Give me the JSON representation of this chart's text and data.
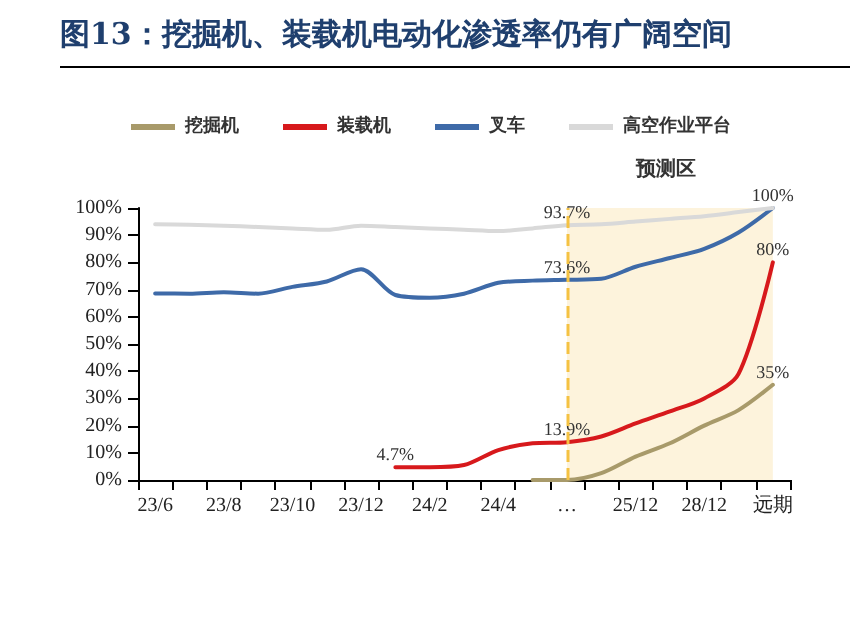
{
  "chart_data": {
    "type": "line",
    "title": "图13：挖掘机、装载机电动化渗透率仍有广阔空间",
    "categories": [
      "23/6",
      null,
      "23/8",
      null,
      "23/10",
      null,
      "23/12",
      null,
      "24/2",
      null,
      "24/4",
      null,
      "…",
      null,
      "25/12",
      null,
      "28/12",
      null,
      "远期"
    ],
    "series": [
      {
        "name": "挖掘机",
        "color": "#a89a6a",
        "values": [
          null,
          null,
          null,
          null,
          null,
          null,
          null,
          null,
          null,
          null,
          null,
          0,
          0,
          2.5,
          8.6,
          13.5,
          20,
          25.7,
          35
        ],
        "value_labels": [
          null,
          null,
          null,
          null,
          null,
          null,
          null,
          null,
          null,
          null,
          null,
          null,
          null,
          null,
          null,
          null,
          null,
          null,
          "35%"
        ]
      },
      {
        "name": "装载机",
        "color": "#d7191c",
        "values": [
          null,
          null,
          null,
          null,
          null,
          null,
          null,
          4.7,
          4.7,
          5.5,
          11,
          13.5,
          13.9,
          16,
          20.8,
          25.2,
          30,
          39,
          80
        ],
        "value_labels": [
          null,
          null,
          null,
          null,
          null,
          null,
          null,
          "4.7%",
          null,
          null,
          null,
          null,
          "13.9%",
          null,
          null,
          null,
          null,
          null,
          "80%"
        ]
      },
      {
        "name": "叉车",
        "color": "#3e6aa8",
        "values": [
          68.6,
          68.5,
          69,
          68.5,
          71,
          73,
          77.5,
          68,
          67,
          68.5,
          72.5,
          73.3,
          73.6,
          74,
          78.4,
          81.6,
          85,
          91,
          100
        ],
        "value_labels": [
          null,
          null,
          null,
          null,
          null,
          null,
          null,
          null,
          null,
          null,
          null,
          null,
          "73.6%",
          null,
          null,
          null,
          null,
          null,
          null
        ]
      },
      {
        "name": "高空作业平台",
        "color": "#d9d9d9",
        "values": [
          94,
          93.8,
          93.5,
          93,
          92.5,
          92,
          93.5,
          93,
          92.5,
          92,
          91.5,
          92.5,
          93.7,
          94,
          95,
          96,
          97,
          98.5,
          100
        ],
        "value_labels": [
          null,
          null,
          null,
          null,
          null,
          null,
          null,
          null,
          null,
          null,
          null,
          null,
          "93.7%",
          null,
          null,
          null,
          null,
          null,
          "100%"
        ]
      }
    ],
    "ylim": [
      0,
      100
    ],
    "yticks": [
      {
        "value": 0,
        "label": "0%"
      },
      {
        "value": 10,
        "label": "10%"
      },
      {
        "value": 20,
        "label": "20%"
      },
      {
        "value": 30,
        "label": "30%"
      },
      {
        "value": 40,
        "label": "40%"
      },
      {
        "value": 50,
        "label": "50%"
      },
      {
        "value": 60,
        "label": "60%"
      },
      {
        "value": 70,
        "label": "70%"
      },
      {
        "value": 80,
        "label": "80%"
      },
      {
        "value": 90,
        "label": "90%"
      },
      {
        "value": 100,
        "label": "100%"
      }
    ],
    "bands": [
      {
        "axis": "x",
        "from": "…",
        "to": "远期",
        "label": "预测区",
        "color": "#fdf3dc"
      }
    ],
    "ref_lines": [
      {
        "axis": "x",
        "value": "…",
        "color": "#f5c242",
        "line_style": "dashed"
      }
    ],
    "legend": "top",
    "marker": "none",
    "line_style": "solid",
    "grid": false
  }
}
